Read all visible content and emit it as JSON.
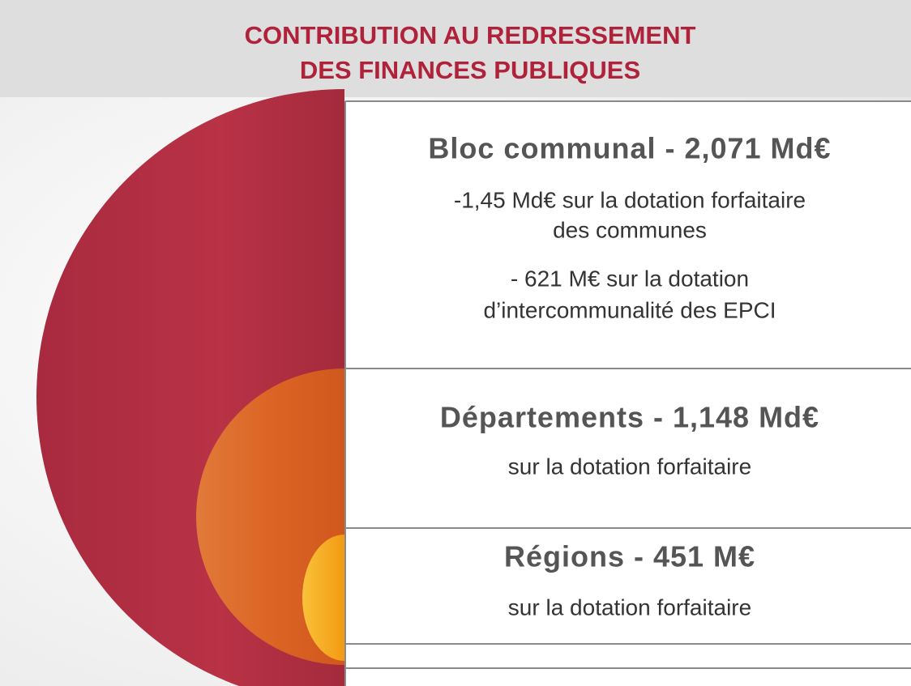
{
  "header": {
    "title": [
      "CONTRIBUTION AU REDRESSEMENT",
      "DES FINANCES PUBLIQUES"
    ]
  },
  "sections": [
    {
      "heading": "Bloc communal - 2,071 Md€",
      "lines": [
        "-1,45 Md€ sur la dotation forfaitaire",
        "des communes",
        "- 621 M€ sur la dotation",
        "d’intercommunalité des EPCI"
      ]
    },
    {
      "heading": "Départements - 1,148 Md€",
      "lines": [
        "sur la dotation forfaitaire"
      ]
    },
    {
      "heading": "Régions - 451 M€",
      "lines": [
        "sur la dotation forfaitaire"
      ]
    }
  ]
}
